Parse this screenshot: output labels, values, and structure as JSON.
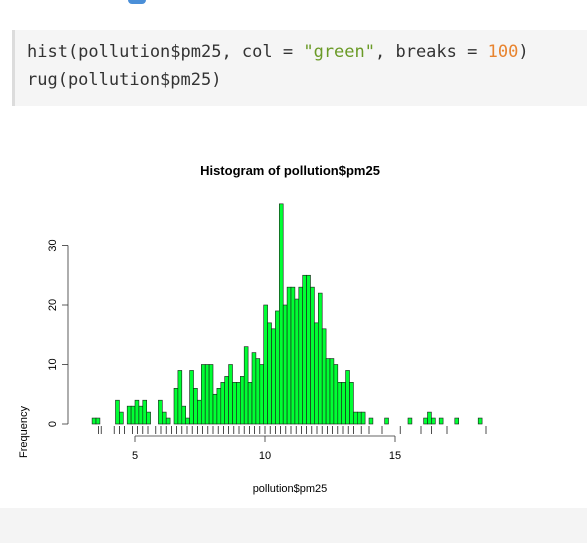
{
  "code": {
    "line1": {
      "fn": "hist(pollution$pm25, col = ",
      "str": "\"green\"",
      "mid": ", breaks = ",
      "num": "100",
      "end": ")"
    },
    "line2": "rug(pollution$pm25)"
  },
  "colors": {
    "bar_fill": "#00ff33",
    "bar_stroke": "#1a1a1a",
    "axis": "#333333",
    "string": "#6a9a26",
    "number": "#e8842f"
  },
  "chart_data": {
    "type": "bar",
    "title": "Histogram of pollution$pm25",
    "xlabel": "pollution$pm25",
    "ylabel": "Frequency",
    "xlim": [
      3,
      18.5
    ],
    "ylim": [
      0,
      37
    ],
    "x_ticks": [
      5,
      10,
      15
    ],
    "y_ticks": [
      0,
      10,
      20,
      30
    ],
    "bin_width": 0.15,
    "bins_start": 3.35,
    "values": [
      1,
      1,
      0,
      0,
      0,
      0,
      4,
      2,
      0,
      3,
      3,
      4,
      3,
      4,
      2,
      0,
      0,
      4,
      2,
      1,
      0,
      6,
      9,
      3,
      1,
      9,
      6,
      4,
      10,
      10,
      10,
      5,
      6,
      7,
      8,
      10,
      7,
      7,
      8,
      13,
      7,
      12,
      11,
      10,
      20,
      17,
      16,
      19,
      37,
      20,
      23,
      23,
      21,
      23,
      25,
      25,
      23,
      17,
      22,
      16,
      11,
      11,
      10,
      7,
      7,
      9,
      7,
      2,
      2,
      2,
      0,
      1,
      0,
      0,
      0,
      1,
      0,
      0,
      0,
      0,
      0,
      1,
      0,
      0,
      0,
      1,
      2,
      1,
      0,
      1,
      0,
      0,
      0,
      1,
      0,
      0,
      0,
      0,
      0,
      1
    ],
    "rug": [
      3.6,
      3.7,
      4.2,
      4.4,
      4.6,
      4.9,
      5.1,
      5.3,
      5.5,
      5.8,
      6.0,
      6.2,
      6.4,
      6.6,
      6.8,
      7.0,
      7.2,
      7.4,
      7.6,
      7.8,
      8.0,
      8.2,
      8.4,
      8.6,
      8.8,
      9.0,
      9.2,
      9.4,
      9.6,
      9.8,
      10.0,
      10.2,
      10.4,
      10.6,
      10.8,
      11.0,
      11.2,
      11.4,
      11.6,
      11.8,
      12.0,
      12.2,
      12.4,
      12.6,
      12.8,
      13.0,
      13.2,
      13.4,
      13.7,
      14.0,
      14.5,
      15.2,
      16.0,
      16.4,
      17.0,
      18.5
    ]
  }
}
